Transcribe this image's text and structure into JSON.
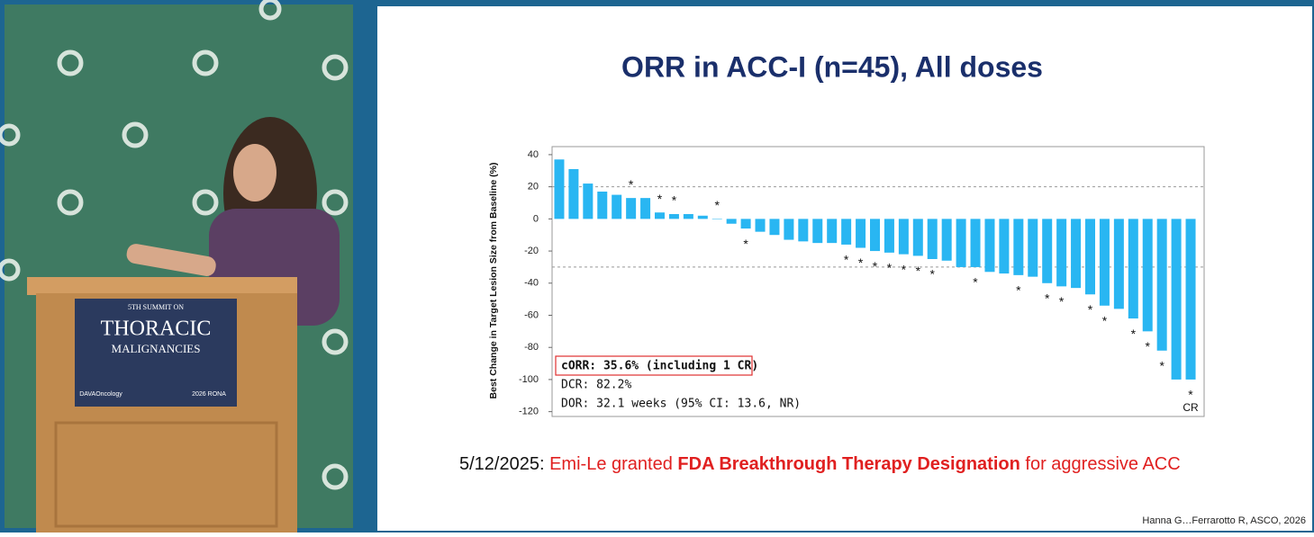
{
  "chart_data": {
    "type": "bar",
    "title": "ORR in ACC-I (n=45), All doses",
    "y_label": "Best Change in Target Lesion Size from Baseline (%)",
    "values": [
      37,
      31,
      22,
      17,
      15,
      13,
      13,
      4,
      3,
      3,
      2,
      0,
      -3,
      -6,
      -8,
      -10,
      -13,
      -14,
      -15,
      -15,
      -16,
      -18,
      -20,
      -21,
      -22,
      -23,
      -25,
      -26,
      -30,
      -30,
      -33,
      -34,
      -35,
      -36,
      -40,
      -42,
      -43,
      -47,
      -54,
      -56,
      -62,
      -70,
      -82,
      -100,
      -100
    ],
    "markers": [
      null,
      null,
      null,
      null,
      null,
      "*",
      null,
      "*",
      "*",
      null,
      null,
      "*",
      null,
      "*",
      null,
      null,
      null,
      null,
      null,
      null,
      "*",
      "*",
      "*",
      "*",
      "*",
      "*",
      "*",
      null,
      null,
      "*",
      null,
      null,
      "*",
      null,
      "*",
      "*",
      null,
      "*",
      "*",
      null,
      "*",
      "*",
      "*",
      null,
      "*"
    ],
    "notes": [
      null,
      null,
      null,
      null,
      null,
      null,
      null,
      null,
      null,
      null,
      null,
      null,
      null,
      null,
      null,
      null,
      null,
      null,
      null,
      null,
      null,
      null,
      null,
      null,
      null,
      null,
      null,
      null,
      null,
      null,
      null,
      null,
      null,
      null,
      null,
      null,
      null,
      null,
      null,
      null,
      null,
      null,
      null,
      null,
      "CR"
    ],
    "color": "#29b6f2",
    "ylim": [
      -123,
      45
    ],
    "yticks": [
      -120,
      -100,
      -80,
      -60,
      -40,
      -20,
      0,
      20,
      40
    ],
    "reference_lines": [
      20,
      -30
    ],
    "stats": [
      "cORR: 35.6% (including 1 CR)",
      "DCR: 82.2%",
      "DOR: 32.1 weeks (95% CI: 13.6, NR)"
    ]
  },
  "announcement": {
    "date": "5/12/2025:",
    "text_1": "Emi-Le granted",
    "highlight": "FDA Breakthrough Therapy Designation",
    "text_2": "for aggressive ACC"
  },
  "citation": "Hanna G…Ferrarotto R, ASCO, 2026",
  "podium": {
    "line_1": "5TH SUMMIT ON",
    "line_2": "THORACIC",
    "line_3": "MALIGNANCIES",
    "sponsor": "DAVAOncology",
    "badge": "2026 RONA"
  }
}
